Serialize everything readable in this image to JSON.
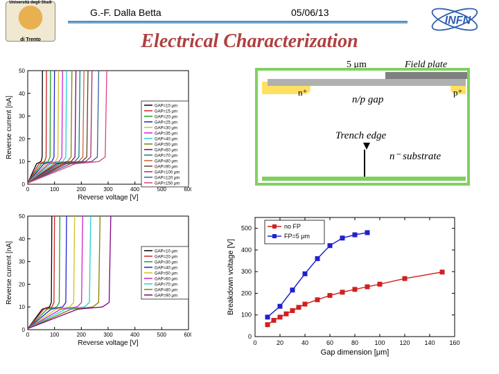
{
  "header": {
    "university_top": "Università degli Studi",
    "university_bottom": "di Trento",
    "author": "G.-F. Dalla Betta",
    "date": "05/06/13",
    "infn": "INFN"
  },
  "title": "Electrical Characterization",
  "labels": {
    "noFP": "no FP",
    "gap1": "gap",
    "FP5": "FP=5um",
    "gap2": "gap"
  },
  "diagram": {
    "five_um": "5 μm",
    "field_plate": "Field plate",
    "n_plus": "n⁺",
    "p_plus": "p⁺",
    "np_gap": "n/p gap",
    "trench_edge": "Trench edge",
    "n_substrate": "n⁻ substrate",
    "colors": {
      "border": "#80d060",
      "metal": "#808080",
      "oxide": "#b0b0b0",
      "implant": "#ffe060"
    }
  },
  "chart_topleft": {
    "type": "line",
    "xlabel": "Reverse voltage [V]",
    "ylabel": "Reverse current [nA]",
    "xlim": [
      0,
      600
    ],
    "xtick_step": 100,
    "ylim": [
      0,
      50
    ],
    "ytick_step": 10,
    "series": [
      {
        "label": "GAP=10 μm",
        "color": "#000000",
        "breakdown": 55
      },
      {
        "label": "GAP=15 μm",
        "color": "#d02020",
        "breakdown": 70
      },
      {
        "label": "GAP=20 μm",
        "color": "#20a020",
        "breakdown": 85
      },
      {
        "label": "GAP=25 μm",
        "color": "#2020d0",
        "breakdown": 100
      },
      {
        "label": "GAP=30 μm",
        "color": "#d0c020",
        "breakdown": 115
      },
      {
        "label": "GAP=35 μm",
        "color": "#d020d0",
        "breakdown": 130
      },
      {
        "label": "GAP=40 μm",
        "color": "#20d0d0",
        "breakdown": 145
      },
      {
        "label": "GAP=50 μm",
        "color": "#808000",
        "breakdown": 165
      },
      {
        "label": "GAP=60 μm",
        "color": "#800080",
        "breakdown": 180
      },
      {
        "label": "GAP=70 μm",
        "color": "#008080",
        "breakdown": 195
      },
      {
        "label": "GAP=80 μm",
        "color": "#d06030",
        "breakdown": 210
      },
      {
        "label": "GAP=90 μm",
        "color": "#604020",
        "breakdown": 225
      },
      {
        "label": "GAP=100 μm",
        "color": "#a03060",
        "breakdown": 240
      },
      {
        "label": "GAP=120 μm",
        "color": "#3060a0",
        "breakdown": 265
      },
      {
        "label": "GAP=150 μm",
        "color": "#e04080",
        "breakdown": 295
      }
    ],
    "flat_y": 10
  },
  "chart_bottomleft": {
    "type": "line",
    "xlabel": "Reverse voltage [V]",
    "ylabel": "Reverse current [nA]",
    "xlim": [
      0,
      600
    ],
    "xtick_step": 100,
    "ylim": [
      0,
      50
    ],
    "ytick_step": 10,
    "series": [
      {
        "label": "GAP=10 μm",
        "color": "#000000",
        "breakdown": 90
      },
      {
        "label": "GAP=20 μm",
        "color": "#d02020",
        "breakdown": 100
      },
      {
        "label": "GAP=30 μm",
        "color": "#20a020",
        "breakdown": 120
      },
      {
        "label": "GAP=40 μm",
        "color": "#2020d0",
        "breakdown": 145
      },
      {
        "label": "GAP=50 μm",
        "color": "#d0c020",
        "breakdown": 175
      },
      {
        "label": "GAP=60 μm",
        "color": "#d020d0",
        "breakdown": 205
      },
      {
        "label": "GAP=70 μm",
        "color": "#20d0d0",
        "breakdown": 235
      },
      {
        "label": "GAP=80 μm",
        "color": "#808000",
        "breakdown": 270
      },
      {
        "label": "GAP=90 μm",
        "color": "#800080",
        "breakdown": 310
      }
    ],
    "flat_y": 10
  },
  "chart_right": {
    "type": "scatter-line",
    "xlabel": "Gap dimension [μm]",
    "ylabel": "Breakdown voltage [V]",
    "xlim": [
      0,
      160
    ],
    "xtick_step": 20,
    "ylim": [
      0,
      550
    ],
    "yticks": [
      0,
      100,
      200,
      300,
      400,
      500
    ],
    "series": [
      {
        "label": "no FP",
        "color": "#d02020",
        "points": [
          [
            10,
            55
          ],
          [
            15,
            75
          ],
          [
            20,
            90
          ],
          [
            25,
            105
          ],
          [
            30,
            120
          ],
          [
            35,
            135
          ],
          [
            40,
            150
          ],
          [
            50,
            170
          ],
          [
            60,
            190
          ],
          [
            70,
            205
          ],
          [
            80,
            218
          ],
          [
            90,
            230
          ],
          [
            100,
            242
          ],
          [
            120,
            268
          ],
          [
            150,
            298
          ]
        ]
      },
      {
        "label": "FP=5 μm",
        "color": "#2020d0",
        "points": [
          [
            10,
            90
          ],
          [
            20,
            140
          ],
          [
            30,
            215
          ],
          [
            40,
            290
          ],
          [
            50,
            360
          ],
          [
            60,
            420
          ],
          [
            70,
            455
          ],
          [
            80,
            470
          ],
          [
            90,
            480
          ]
        ]
      }
    ]
  }
}
